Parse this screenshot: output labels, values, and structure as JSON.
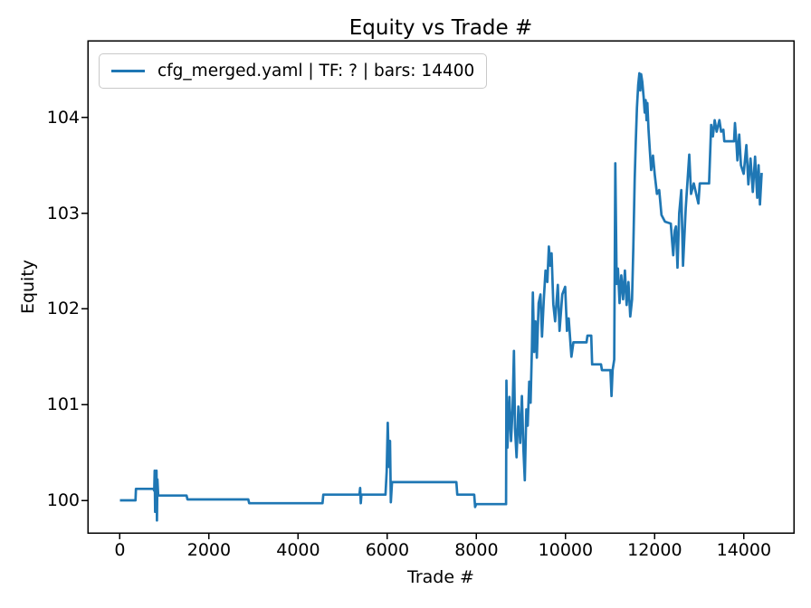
{
  "chart_data": {
    "type": "line",
    "title": "Equity vs Trade #",
    "xlabel": "Trade #",
    "ylabel": "Equity",
    "legend_label": "cfg_merged.yaml | TF: ? | bars: 14400",
    "legend_position": "upper left",
    "grid": false,
    "background_color": "#ffffff",
    "xlim": [
      -720,
      15120
    ],
    "ylim": [
      99.66,
      104.8
    ],
    "x_ticks": [
      0,
      2000,
      4000,
      6000,
      8000,
      10000,
      12000,
      14000
    ],
    "y_ticks": [
      100,
      101,
      102,
      103,
      104
    ],
    "series": [
      {
        "name": "cfg_merged.yaml | TF: ? | bars: 14400",
        "color": "#1f77b4",
        "points": [
          [
            0,
            100.0
          ],
          [
            350,
            100.0
          ],
          [
            360,
            100.12
          ],
          [
            755,
            100.12
          ],
          [
            770,
            100.1
          ],
          [
            780,
            100.31
          ],
          [
            790,
            99.88
          ],
          [
            800,
            100.25
          ],
          [
            812,
            99.92
          ],
          [
            822,
            100.31
          ],
          [
            832,
            99.79
          ],
          [
            842,
            100.22
          ],
          [
            860,
            100.05
          ],
          [
            1495,
            100.05
          ],
          [
            1515,
            100.01
          ],
          [
            2880,
            100.01
          ],
          [
            2900,
            99.97
          ],
          [
            4545,
            99.97
          ],
          [
            4565,
            100.06
          ],
          [
            5375,
            100.06
          ],
          [
            5390,
            100.13
          ],
          [
            5405,
            99.97
          ],
          [
            5420,
            100.06
          ],
          [
            5960,
            100.06
          ],
          [
            5985,
            100.3
          ],
          [
            6010,
            100.81
          ],
          [
            6035,
            100.35
          ],
          [
            6060,
            100.62
          ],
          [
            6080,
            99.98
          ],
          [
            6105,
            100.19
          ],
          [
            7550,
            100.19
          ],
          [
            7570,
            100.06
          ],
          [
            7950,
            100.06
          ],
          [
            7970,
            99.93
          ],
          [
            7995,
            99.96
          ],
          [
            8665,
            99.96
          ],
          [
            8672,
            101.25
          ],
          [
            8695,
            100.55
          ],
          [
            8740,
            101.08
          ],
          [
            8775,
            100.62
          ],
          [
            8810,
            100.95
          ],
          [
            8840,
            101.56
          ],
          [
            8865,
            100.75
          ],
          [
            8900,
            100.45
          ],
          [
            8940,
            100.98
          ],
          [
            8980,
            100.6
          ],
          [
            9020,
            101.09
          ],
          [
            9055,
            100.53
          ],
          [
            9085,
            100.21
          ],
          [
            9120,
            100.95
          ],
          [
            9150,
            100.78
          ],
          [
            9185,
            101.24
          ],
          [
            9215,
            101.02
          ],
          [
            9245,
            101.6
          ],
          [
            9265,
            102.17
          ],
          [
            9295,
            101.55
          ],
          [
            9325,
            101.87
          ],
          [
            9355,
            101.49
          ],
          [
            9395,
            102.06
          ],
          [
            9435,
            102.15
          ],
          [
            9470,
            101.71
          ],
          [
            9510,
            102.1
          ],
          [
            9550,
            102.4
          ],
          [
            9590,
            102.28
          ],
          [
            9625,
            102.65
          ],
          [
            9655,
            102.45
          ],
          [
            9685,
            102.58
          ],
          [
            9725,
            102.05
          ],
          [
            9765,
            101.87
          ],
          [
            9825,
            102.25
          ],
          [
            9865,
            101.77
          ],
          [
            9925,
            102.15
          ],
          [
            9990,
            102.23
          ],
          [
            10030,
            101.77
          ],
          [
            10070,
            101.9
          ],
          [
            10130,
            101.5
          ],
          [
            10175,
            101.65
          ],
          [
            10470,
            101.65
          ],
          [
            10490,
            101.72
          ],
          [
            10575,
            101.72
          ],
          [
            10595,
            101.42
          ],
          [
            10795,
            101.42
          ],
          [
            10815,
            101.36
          ],
          [
            11005,
            101.36
          ],
          [
            11030,
            101.09
          ],
          [
            11055,
            101.36
          ],
          [
            11090,
            101.47
          ],
          [
            11115,
            103.52
          ],
          [
            11145,
            102.26
          ],
          [
            11175,
            102.42
          ],
          [
            11210,
            102.06
          ],
          [
            11250,
            102.35
          ],
          [
            11290,
            102.1
          ],
          [
            11330,
            102.4
          ],
          [
            11370,
            102.04
          ],
          [
            11410,
            102.28
          ],
          [
            11450,
            101.92
          ],
          [
            11490,
            102.1
          ],
          [
            11520,
            102.64
          ],
          [
            11550,
            103.35
          ],
          [
            11575,
            103.74
          ],
          [
            11600,
            104.1
          ],
          [
            11630,
            104.34
          ],
          [
            11655,
            104.46
          ],
          [
            11675,
            104.28
          ],
          [
            11695,
            104.45
          ],
          [
            11720,
            104.37
          ],
          [
            11750,
            104.21
          ],
          [
            11775,
            104.05
          ],
          [
            11795,
            104.18
          ],
          [
            11815,
            103.97
          ],
          [
            11835,
            104.15
          ],
          [
            11860,
            103.87
          ],
          [
            11890,
            103.66
          ],
          [
            11920,
            103.45
          ],
          [
            11960,
            103.6
          ],
          [
            12000,
            103.4
          ],
          [
            12050,
            103.2
          ],
          [
            12100,
            103.24
          ],
          [
            12150,
            102.98
          ],
          [
            12230,
            102.91
          ],
          [
            12360,
            102.89
          ],
          [
            12390,
            102.7
          ],
          [
            12415,
            102.56
          ],
          [
            12450,
            102.82
          ],
          [
            12475,
            102.86
          ],
          [
            12510,
            102.43
          ],
          [
            12550,
            103.0
          ],
          [
            12595,
            103.24
          ],
          [
            12635,
            102.45
          ],
          [
            12695,
            103.05
          ],
          [
            12775,
            103.61
          ],
          [
            12815,
            103.2
          ],
          [
            12875,
            103.31
          ],
          [
            12980,
            103.1
          ],
          [
            13010,
            103.31
          ],
          [
            13220,
            103.31
          ],
          [
            13265,
            103.92
          ],
          [
            13305,
            103.8
          ],
          [
            13345,
            103.97
          ],
          [
            13390,
            103.85
          ],
          [
            13450,
            103.97
          ],
          [
            13490,
            103.85
          ],
          [
            13540,
            103.87
          ],
          [
            13560,
            103.75
          ],
          [
            13780,
            103.75
          ],
          [
            13800,
            103.94
          ],
          [
            13835,
            103.72
          ],
          [
            13855,
            103.55
          ],
          [
            13895,
            103.82
          ],
          [
            13935,
            103.5
          ],
          [
            13995,
            103.41
          ],
          [
            14055,
            103.71
          ],
          [
            14100,
            103.3
          ],
          [
            14150,
            103.57
          ],
          [
            14200,
            103.22
          ],
          [
            14250,
            103.59
          ],
          [
            14300,
            103.16
          ],
          [
            14330,
            103.5
          ],
          [
            14360,
            103.09
          ],
          [
            14400,
            103.42
          ]
        ]
      }
    ],
    "axis_color": "#000000"
  }
}
